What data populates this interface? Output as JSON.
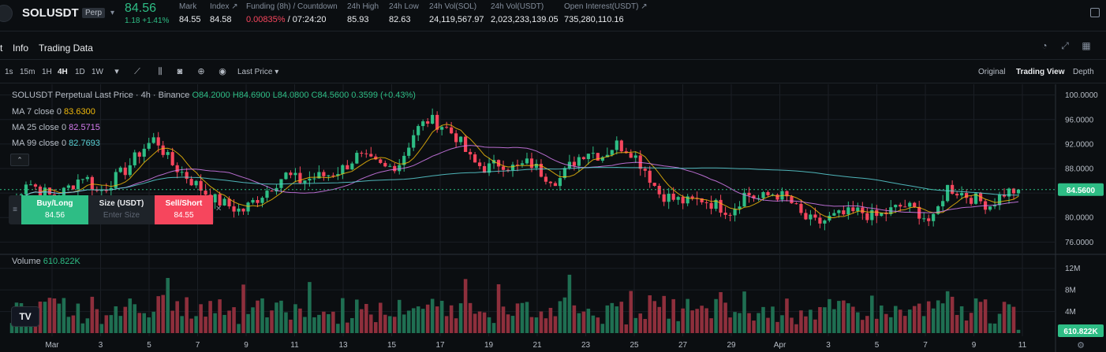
{
  "ticker": {
    "symbol": "SOLUSDT",
    "badge": "Perp",
    "last_price": "84.56",
    "change": "1.18 +1.41%",
    "stats": [
      {
        "label": "Mark",
        "value": "84.55"
      },
      {
        "label": "Index ↗",
        "value": "84.58"
      },
      {
        "label": "Funding (8h) / Countdown",
        "value_red": "0.00835%",
        "value": " / 07:24:20"
      },
      {
        "label": "24h High",
        "value": "85.93"
      },
      {
        "label": "24h Low",
        "value": "82.63"
      },
      {
        "label": "24h Vol(SOL)",
        "value": "24,119,567.97"
      },
      {
        "label": "24h Vol(USDT)",
        "value": "2,023,233,139.05"
      },
      {
        "label": "Open Interest(USDT) ↗",
        "value": "735,280,110.16"
      }
    ]
  },
  "tabs": {
    "items": [
      "t",
      "Info",
      "Trading Data"
    ]
  },
  "toolbar": {
    "timeframes": [
      "1s",
      "15m",
      "1H",
      "4H",
      "1D",
      "1W"
    ],
    "active": "4H",
    "price_type": "Last Price",
    "views": [
      "Original",
      "Trading View",
      "Depth"
    ],
    "active_view": "Trading View"
  },
  "legend": {
    "title": "SOLUSDT Perpetual Last Price · 4h · Binance",
    "ohlc": "O84.2000  H84.6900  L84.0800  C84.5600  0.3599 (+0.43%)",
    "ma7_label": "MA 7 close 0",
    "ma7_value": "83.6300",
    "ma25_label": "MA 25 close 0",
    "ma25_value": "82.5715",
    "ma99_label": "MA 99 close 0",
    "ma99_value": "82.7693",
    "volume_label": "Volume",
    "volume_value": "610.822K"
  },
  "quick_trade": {
    "buy_label": "Buy/Long",
    "buy_price": "84.56",
    "size_label": "Size (USDT)",
    "size_placeholder": "Enter Size",
    "sell_label": "Sell/Short",
    "sell_price": "84.55"
  },
  "chart_data": {
    "type": "candlestick",
    "price_ticks": [
      "100.0000",
      "96.0000",
      "92.0000",
      "88.0000",
      "84.0000",
      "80.0000",
      "76.0000"
    ],
    "price_range": [
      74.5,
      101.5
    ],
    "last_price_label": "84.5600",
    "volume_ticks": [
      "12M",
      "8M",
      "4M"
    ],
    "volume_range": [
      0,
      14
    ],
    "last_volume_label": "610.822K",
    "x_labels": [
      "Mar",
      "3",
      "5",
      "7",
      "9",
      "11",
      "13",
      "15",
      "17",
      "19",
      "21",
      "23",
      "25",
      "27",
      "29",
      "Apr",
      "3",
      "5",
      "7",
      "9",
      "11"
    ],
    "close_path": [
      82,
      86,
      84.5,
      83,
      85,
      87,
      84,
      86,
      88,
      91,
      93,
      89,
      87,
      85,
      83,
      82,
      81,
      83,
      85,
      87,
      86,
      86.5,
      87,
      88,
      90,
      89,
      88,
      89,
      94,
      96,
      95,
      93,
      89,
      88,
      89,
      88,
      89,
      87,
      86,
      89,
      91,
      90,
      92,
      91,
      88,
      84,
      83,
      82.5,
      83,
      82,
      81,
      84,
      83,
      84,
      83,
      80,
      79,
      80,
      80.5,
      81,
      80,
      81,
      82,
      81,
      79,
      85,
      84,
      83,
      82,
      84,
      84.56
    ],
    "ma7_color": "#f0b90b",
    "ma25_color": "#d67cf0",
    "ma99_color": "#5ad1d6",
    "up_color": "#2ebd85",
    "down_color": "#f6465d"
  }
}
